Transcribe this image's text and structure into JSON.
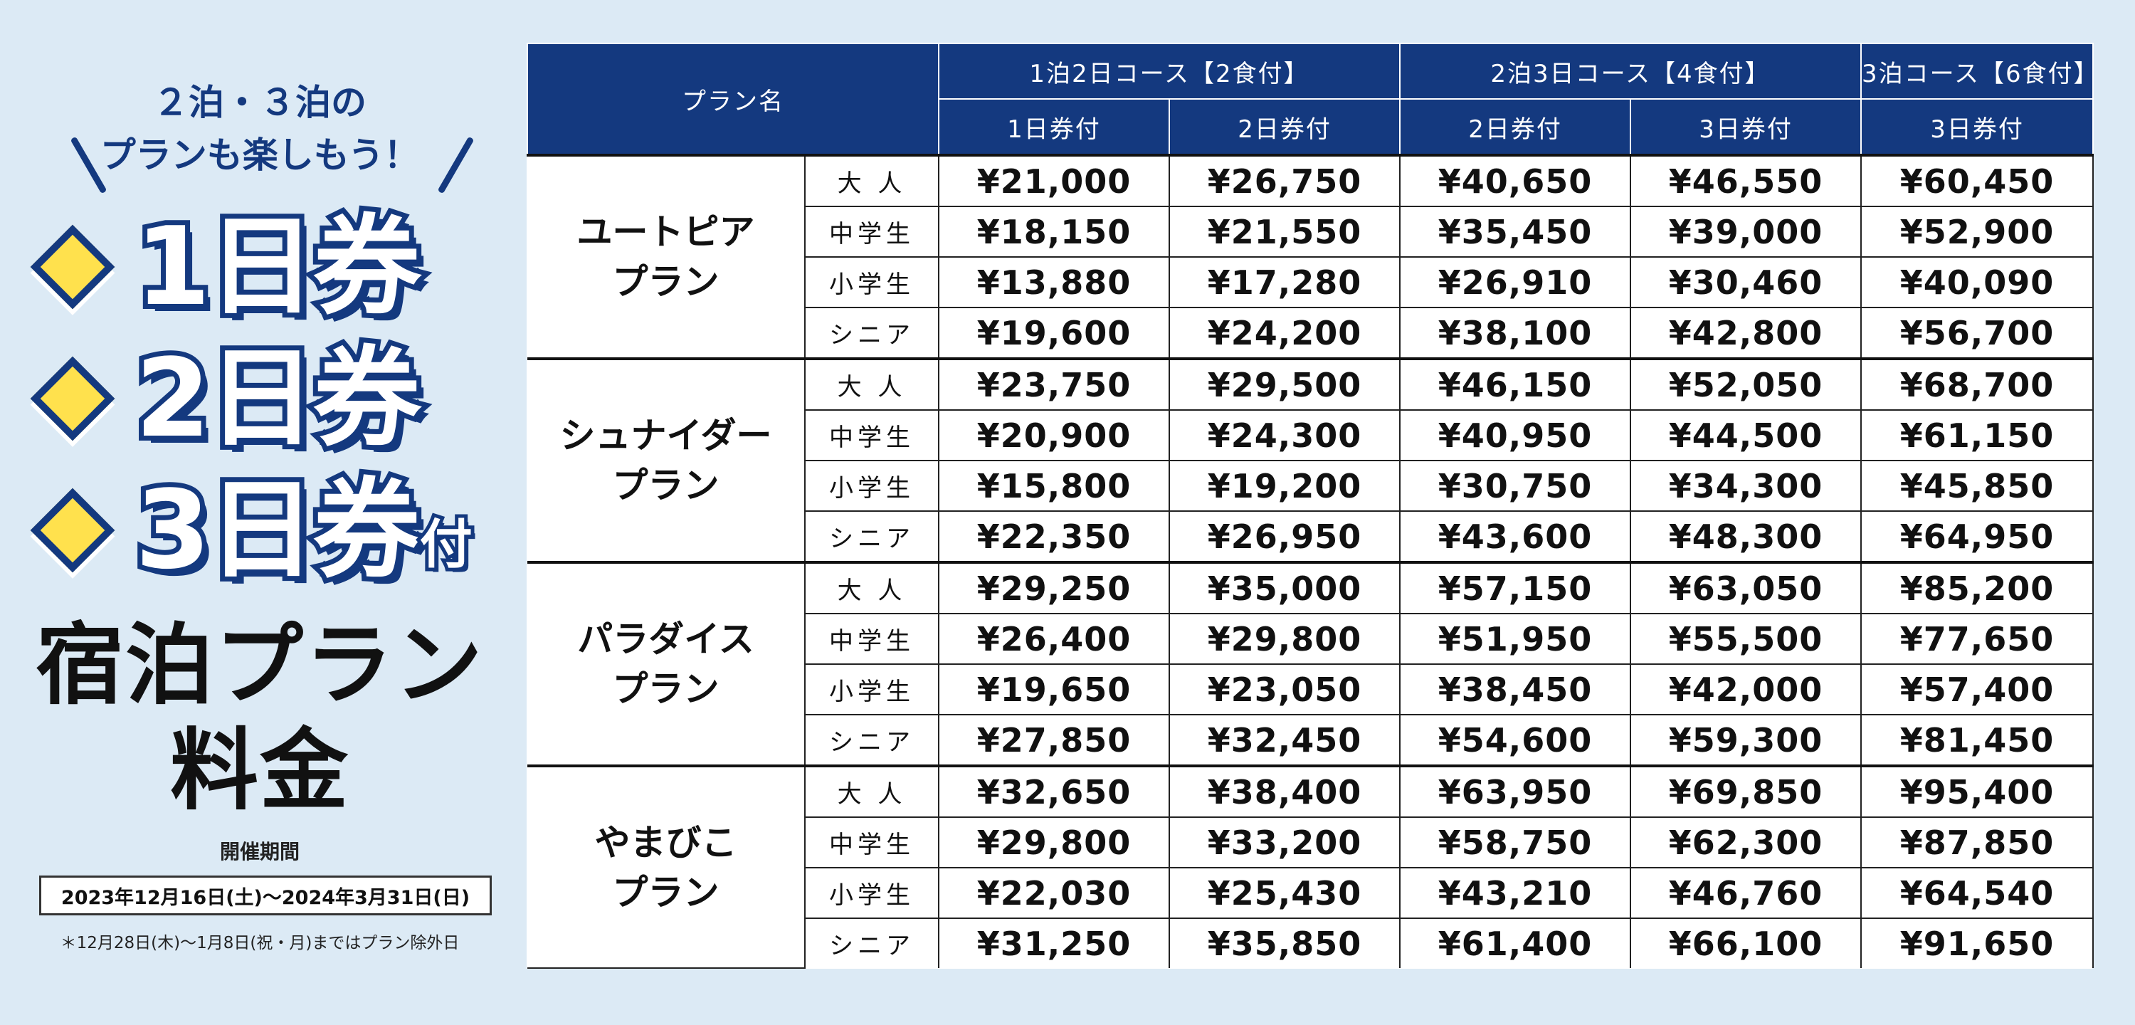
{
  "promo": {
    "tagline_line1": "２泊・３泊の",
    "tagline_line2": "プランも楽しもう！",
    "tickets": [
      {
        "label": "1日券",
        "suffix": ""
      },
      {
        "label": "2日券",
        "suffix": ""
      },
      {
        "label": "3日券",
        "suffix": "付"
      }
    ],
    "title_line1": "宿泊プラン",
    "title_line2": "料金",
    "period_label": "開催期間",
    "period_value": "2023年12月16日(土)〜2024年3月31日(日)",
    "note": "＊12月28日(木)〜1月8日(祝・月)まではプラン除外日"
  },
  "table": {
    "plan_header": "プラン名",
    "courses": [
      {
        "label": "1泊2日コース【2食付】"
      },
      {
        "label": "2泊3日コース【4食付】"
      },
      {
        "label": "3泊コース【6食付】"
      }
    ],
    "sub_headers": [
      "1日券付",
      "2日券付",
      "2日券付",
      "3日券付",
      "3日券付"
    ],
    "plans": [
      {
        "name_line1": "ユートピア",
        "name_line2": "プラン",
        "rows": [
          {
            "age": "大 人",
            "prices": [
              "¥21,000",
              "¥26,750",
              "¥40,650",
              "¥46,550",
              "¥60,450"
            ]
          },
          {
            "age": "中学生",
            "prices": [
              "¥18,150",
              "¥21,550",
              "¥35,450",
              "¥39,000",
              "¥52,900"
            ]
          },
          {
            "age": "小学生",
            "prices": [
              "¥13,880",
              "¥17,280",
              "¥26,910",
              "¥30,460",
              "¥40,090"
            ]
          },
          {
            "age": "シニア",
            "prices": [
              "¥19,600",
              "¥24,200",
              "¥38,100",
              "¥42,800",
              "¥56,700"
            ]
          }
        ]
      },
      {
        "name_line1": "シュナイダー",
        "name_line2": "プラン",
        "rows": [
          {
            "age": "大 人",
            "prices": [
              "¥23,750",
              "¥29,500",
              "¥46,150",
              "¥52,050",
              "¥68,700"
            ]
          },
          {
            "age": "中学生",
            "prices": [
              "¥20,900",
              "¥24,300",
              "¥40,950",
              "¥44,500",
              "¥61,150"
            ]
          },
          {
            "age": "小学生",
            "prices": [
              "¥15,800",
              "¥19,200",
              "¥30,750",
              "¥34,300",
              "¥45,850"
            ]
          },
          {
            "age": "シニア",
            "prices": [
              "¥22,350",
              "¥26,950",
              "¥43,600",
              "¥48,300",
              "¥64,950"
            ]
          }
        ]
      },
      {
        "name_line1": "パラダイス",
        "name_line2": "プラン",
        "rows": [
          {
            "age": "大 人",
            "prices": [
              "¥29,250",
              "¥35,000",
              "¥57,150",
              "¥63,050",
              "¥85,200"
            ]
          },
          {
            "age": "中学生",
            "prices": [
              "¥26,400",
              "¥29,800",
              "¥51,950",
              "¥55,500",
              "¥77,650"
            ]
          },
          {
            "age": "小学生",
            "prices": [
              "¥19,650",
              "¥23,050",
              "¥38,450",
              "¥42,000",
              "¥57,400"
            ]
          },
          {
            "age": "シニア",
            "prices": [
              "¥27,850",
              "¥32,450",
              "¥54,600",
              "¥59,300",
              "¥81,450"
            ]
          }
        ]
      },
      {
        "name_line1": "やまびこ",
        "name_line2": "プラン",
        "rows": [
          {
            "age": "大 人",
            "prices": [
              "¥32,650",
              "¥38,400",
              "¥63,950",
              "¥69,850",
              "¥95,400"
            ]
          },
          {
            "age": "中学生",
            "prices": [
              "¥29,800",
              "¥33,200",
              "¥58,750",
              "¥62,300",
              "¥87,850"
            ]
          },
          {
            "age": "小学生",
            "prices": [
              "¥22,030",
              "¥25,430",
              "¥43,210",
              "¥46,760",
              "¥64,540"
            ]
          },
          {
            "age": "シニア",
            "prices": [
              "¥31,250",
              "¥35,850",
              "¥61,400",
              "¥66,100",
              "¥91,650"
            ]
          }
        ]
      }
    ]
  }
}
